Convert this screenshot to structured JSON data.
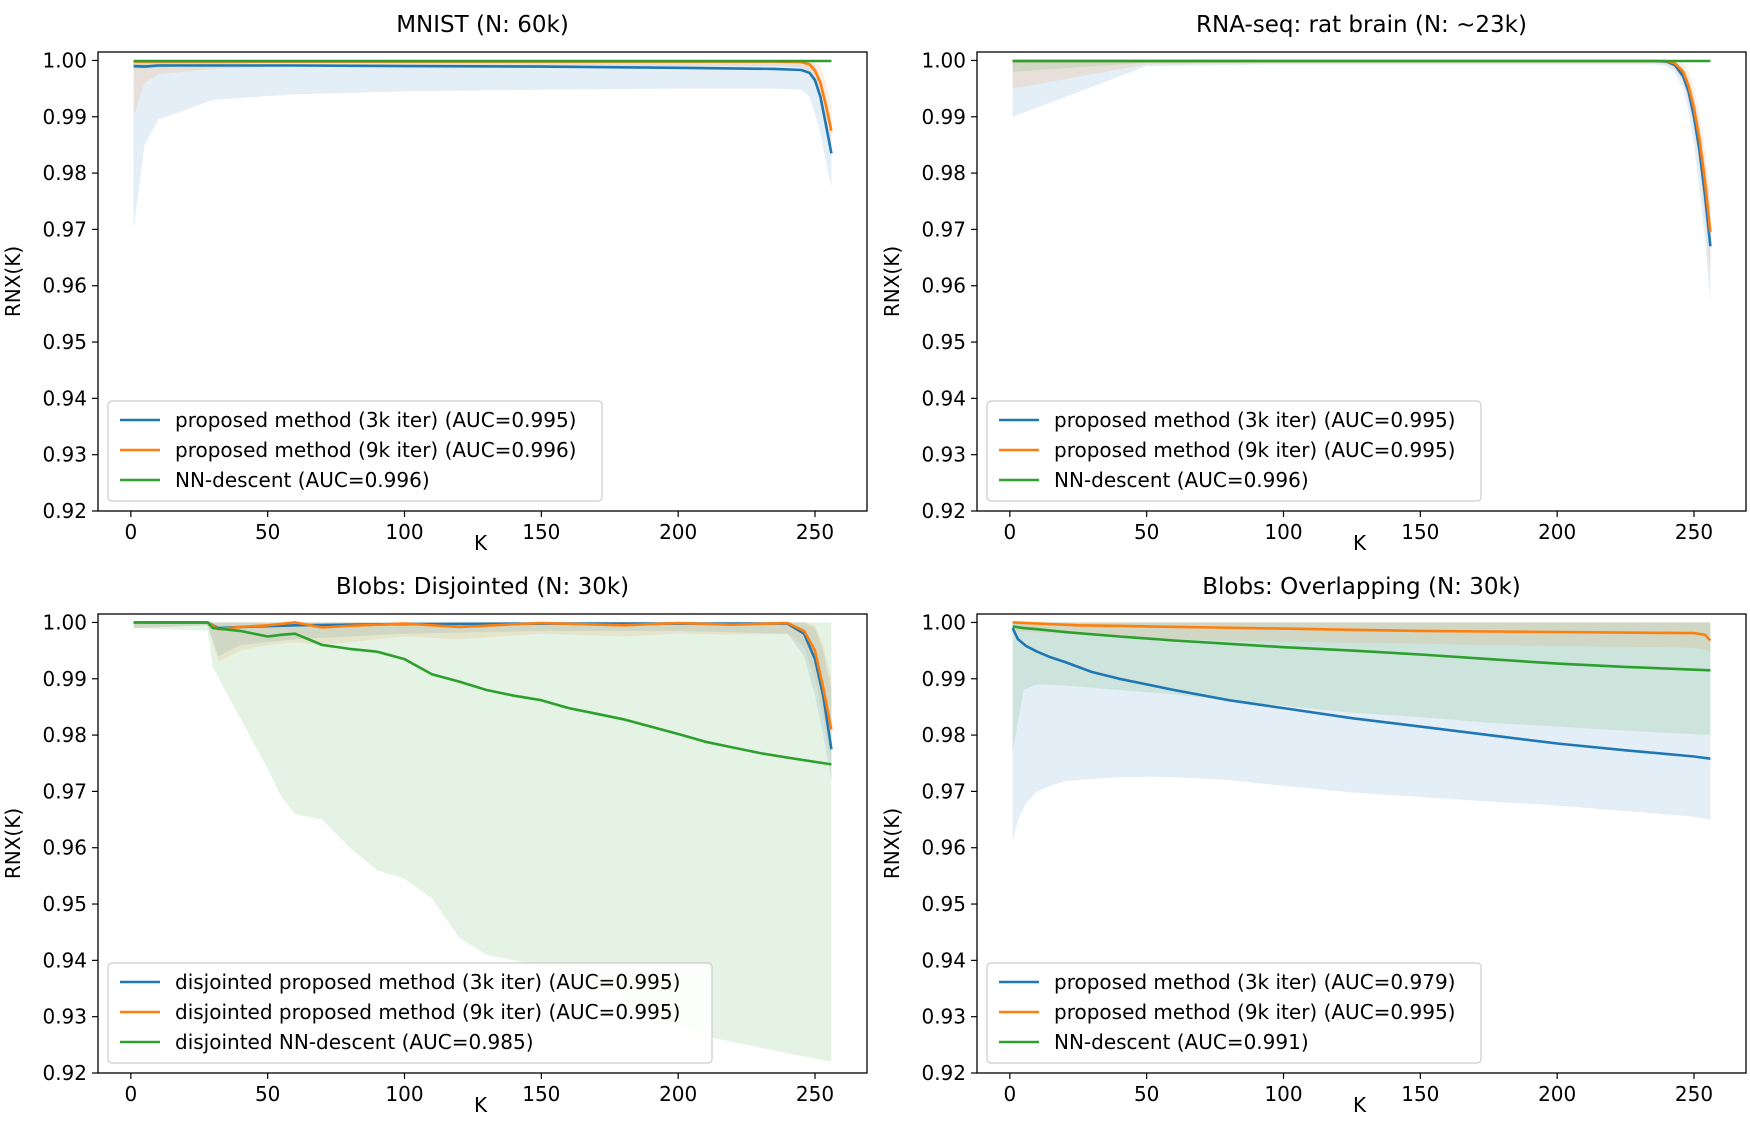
{
  "figure": {
    "rows": 2,
    "cols": 2
  },
  "colors": {
    "blue": "#1f77b4",
    "orange": "#ff7f0e",
    "green": "#2ca02c",
    "axis": "#000000"
  },
  "chart_data": [
    {
      "type": "line",
      "title": "MNIST (N: 60k)",
      "xlabel": "K",
      "ylabel": "RNX(K)",
      "xlim": [
        -12,
        269
      ],
      "ylim": [
        0.92,
        1.0015
      ],
      "xticks": [
        0,
        50,
        100,
        150,
        200,
        250
      ],
      "yticks": [
        1.0,
        0.99,
        0.98,
        0.97,
        0.96,
        0.95,
        0.94,
        0.93,
        0.92
      ],
      "legend_position": "lower-left",
      "series": [
        {
          "name": "proposed method (3k iter) (AUC=0.995)",
          "color": "#1f77b4",
          "x": [
            1,
            5,
            10,
            30,
            60,
            100,
            150,
            200,
            235,
            245,
            248,
            250,
            252,
            254,
            256
          ],
          "y": [
            0.999,
            0.9989,
            0.9991,
            0.9991,
            0.9991,
            0.999,
            0.9989,
            0.9987,
            0.9985,
            0.9983,
            0.9978,
            0.9965,
            0.9935,
            0.9885,
            0.9835
          ],
          "band_hi": [
            0.9999,
            0.9999,
            0.9999,
            0.9999,
            0.9999,
            0.9999,
            0.9999,
            0.9999,
            0.9999,
            0.9999,
            0.9998,
            0.9992,
            0.997,
            0.993,
            0.989
          ],
          "band_lo": [
            0.97,
            0.985,
            0.9895,
            0.993,
            0.994,
            0.9945,
            0.9948,
            0.995,
            0.995,
            0.9948,
            0.9935,
            0.9905,
            0.987,
            0.982,
            0.9775
          ]
        },
        {
          "name": "proposed method (9k iter) (AUC=0.996)",
          "color": "#ff7f0e",
          "x": [
            1,
            5,
            10,
            30,
            60,
            100,
            150,
            200,
            235,
            245,
            248,
            250,
            252,
            254,
            256
          ],
          "y": [
            0.9998,
            0.9998,
            0.9998,
            0.9998,
            0.9998,
            0.9998,
            0.9998,
            0.9998,
            0.9998,
            0.9997,
            0.9993,
            0.9982,
            0.996,
            0.992,
            0.9875
          ],
          "band_hi": [
            1.0,
            1.0,
            1.0,
            1.0,
            1.0,
            1.0,
            1.0,
            1.0,
            1.0,
            1.0,
            1.0,
            0.9998,
            0.999,
            0.996,
            0.992
          ],
          "band_lo": [
            0.99,
            0.996,
            0.9975,
            0.9985,
            0.999,
            0.999,
            0.999,
            0.999,
            0.999,
            0.9988,
            0.998,
            0.996,
            0.993,
            0.988,
            0.983
          ]
        },
        {
          "name": "NN-descent (AUC=0.996)",
          "color": "#2ca02c",
          "x": [
            1,
            50,
            100,
            150,
            200,
            256
          ],
          "y": [
            0.9999,
            0.9999,
            0.9999,
            0.9999,
            0.9999,
            0.9999
          ],
          "band_hi": [
            1.0,
            1.0,
            1.0,
            1.0,
            1.0,
            1.0
          ],
          "band_lo": [
            0.9985,
            0.9997,
            0.9997,
            0.9997,
            0.9997,
            0.9997
          ]
        }
      ]
    },
    {
      "type": "line",
      "title": "RNA-seq: rat brain (N: ~23k)",
      "xlabel": "K",
      "ylabel": "RNX(K)",
      "xlim": [
        -12,
        269
      ],
      "ylim": [
        0.92,
        1.0015
      ],
      "xticks": [
        0,
        50,
        100,
        150,
        200,
        250
      ],
      "yticks": [
        1.0,
        0.99,
        0.98,
        0.97,
        0.96,
        0.95,
        0.94,
        0.93,
        0.92
      ],
      "legend_position": "lower-left",
      "series": [
        {
          "name": "proposed method (3k iter) (AUC=0.995)",
          "color": "#1f77b4",
          "x": [
            1,
            50,
            100,
            150,
            200,
            235,
            240,
            243,
            246,
            248,
            250,
            252,
            254,
            256
          ],
          "y": [
            0.9999,
            0.9999,
            0.9999,
            0.9999,
            0.9999,
            0.9999,
            0.9998,
            0.9992,
            0.9972,
            0.9945,
            0.99,
            0.984,
            0.976,
            0.967
          ],
          "band_hi": [
            1.0,
            1.0,
            1.0,
            1.0,
            1.0,
            1.0,
            1.0,
            0.9998,
            0.9988,
            0.997,
            0.9935,
            0.9885,
            0.9815,
            0.974
          ],
          "band_lo": [
            0.99,
            0.999,
            0.9993,
            0.9993,
            0.9993,
            0.9993,
            0.999,
            0.9978,
            0.995,
            0.991,
            0.985,
            0.977,
            0.968,
            0.957
          ]
        },
        {
          "name": "proposed method (9k iter) (AUC=0.995)",
          "color": "#ff7f0e",
          "x": [
            1,
            50,
            100,
            150,
            200,
            235,
            240,
            243,
            246,
            248,
            250,
            252,
            254,
            256
          ],
          "y": [
            0.9999,
            0.9999,
            0.9999,
            0.9999,
            0.9999,
            0.9999,
            0.9999,
            0.9995,
            0.998,
            0.9955,
            0.9915,
            0.986,
            0.9785,
            0.9695
          ],
          "band_hi": [
            1.0,
            1.0,
            1.0,
            1.0,
            1.0,
            1.0,
            1.0,
            1.0,
            0.9995,
            0.998,
            0.995,
            0.9905,
            0.984,
            0.977
          ],
          "band_lo": [
            0.995,
            0.9993,
            0.9995,
            0.9995,
            0.9995,
            0.9995,
            0.9993,
            0.9985,
            0.9962,
            0.993,
            0.988,
            0.981,
            0.972,
            0.961
          ]
        },
        {
          "name": "NN-descent (AUC=0.996)",
          "color": "#2ca02c",
          "x": [
            1,
            50,
            100,
            150,
            200,
            256
          ],
          "y": [
            0.9999,
            0.9999,
            0.9999,
            0.9999,
            0.9999,
            0.9999
          ],
          "band_hi": [
            1.0,
            1.0,
            1.0,
            1.0,
            1.0,
            1.0
          ],
          "band_lo": [
            0.998,
            0.9996,
            0.9997,
            0.9997,
            0.9997,
            0.9997
          ]
        }
      ]
    },
    {
      "type": "line",
      "title": "Blobs: Disjointed (N: 30k)",
      "xlabel": "K",
      "ylabel": "RNX(K)",
      "xlim": [
        -12,
        269
      ],
      "ylim": [
        0.92,
        1.0015
      ],
      "xticks": [
        0,
        50,
        100,
        150,
        200,
        250
      ],
      "yticks": [
        1.0,
        0.99,
        0.98,
        0.97,
        0.96,
        0.95,
        0.94,
        0.93,
        0.92
      ],
      "legend_position": "lower-left",
      "series": [
        {
          "name": "disjointed proposed method (3k iter) (AUC=0.995)",
          "color": "#1f77b4",
          "x": [
            1,
            28,
            32,
            40,
            60,
            100,
            150,
            200,
            240,
            246,
            250,
            253,
            256
          ],
          "y": [
            1.0,
            1.0,
            0.999,
            0.9992,
            0.9995,
            0.9997,
            0.9998,
            0.9998,
            0.9998,
            0.998,
            0.9935,
            0.987,
            0.9775
          ],
          "band_hi": [
            1.0,
            1.0,
            1.0,
            1.0,
            1.0,
            1.0,
            1.0,
            1.0,
            1.0,
            1.0,
            0.999,
            0.995,
            0.988
          ],
          "band_lo": [
            0.999,
            0.9995,
            0.994,
            0.996,
            0.997,
            0.998,
            0.9985,
            0.9985,
            0.998,
            0.994,
            0.987,
            0.98,
            0.972
          ]
        },
        {
          "name": "disjointed proposed method (9k iter) (AUC=0.995)",
          "color": "#ff7f0e",
          "x": [
            1,
            28,
            32,
            40,
            50,
            60,
            70,
            80,
            100,
            120,
            150,
            180,
            200,
            220,
            240,
            246,
            250,
            253,
            256
          ],
          "y": [
            1.0,
            1.0,
            0.9988,
            0.9992,
            0.9995,
            1.0,
            0.9991,
            0.9994,
            0.9998,
            0.9992,
            0.9999,
            0.9995,
            0.9999,
            0.9996,
            0.9999,
            0.9985,
            0.995,
            0.9885,
            0.981
          ],
          "band_hi": [
            1.0,
            1.0,
            1.0,
            1.0,
            1.0,
            1.0,
            1.0,
            1.0,
            1.0,
            1.0,
            1.0,
            1.0,
            1.0,
            1.0,
            1.0,
            1.0,
            0.9995,
            0.996,
            0.99
          ],
          "band_lo": [
            0.999,
            0.9995,
            0.993,
            0.995,
            0.996,
            0.9965,
            0.996,
            0.9965,
            0.9975,
            0.997,
            0.998,
            0.9975,
            0.998,
            0.9978,
            0.998,
            0.9955,
            0.99,
            0.983,
            0.975
          ]
        },
        {
          "name": "disjointed NN-descent (AUC=0.985)",
          "color": "#2ca02c",
          "x": [
            1,
            28,
            30,
            40,
            50,
            55,
            60,
            70,
            80,
            90,
            100,
            110,
            120,
            130,
            140,
            150,
            160,
            170,
            180,
            190,
            200,
            210,
            220,
            230,
            240,
            256
          ],
          "y": [
            1.0,
            1.0,
            0.999,
            0.9985,
            0.9975,
            0.9978,
            0.998,
            0.996,
            0.9953,
            0.9948,
            0.9935,
            0.9908,
            0.9895,
            0.988,
            0.987,
            0.9862,
            0.9848,
            0.9838,
            0.9828,
            0.9815,
            0.9802,
            0.9788,
            0.9778,
            0.9768,
            0.976,
            0.9748
          ],
          "band_hi": [
            1.0,
            1.0,
            1.0,
            1.0,
            1.0,
            1.0,
            1.0,
            1.0,
            1.0,
            1.0,
            1.0,
            1.0,
            1.0,
            1.0,
            1.0,
            1.0,
            1.0,
            1.0,
            1.0,
            1.0,
            1.0,
            1.0,
            1.0,
            1.0,
            1.0,
            1.0
          ],
          "band_lo": [
            0.999,
            0.9985,
            0.992,
            0.983,
            0.974,
            0.969,
            0.966,
            0.965,
            0.96,
            0.956,
            0.9545,
            0.951,
            0.944,
            0.941,
            0.94,
            0.939,
            0.9375,
            0.936,
            0.933,
            0.93,
            0.9285,
            0.9265,
            0.9255,
            0.9245,
            0.9235,
            0.922
          ]
        }
      ]
    },
    {
      "type": "line",
      "title": "Blobs: Overlapping (N: 30k)",
      "xlabel": "K",
      "ylabel": "RNX(K)",
      "xlim": [
        -12,
        269
      ],
      "ylim": [
        0.92,
        1.0015
      ],
      "xticks": [
        0,
        50,
        100,
        150,
        200,
        250
      ],
      "yticks": [
        1.0,
        0.99,
        0.98,
        0.97,
        0.96,
        0.95,
        0.94,
        0.93,
        0.92
      ],
      "legend_position": "lower-left",
      "series": [
        {
          "name": "proposed method (3k iter) (AUC=0.979)",
          "color": "#1f77b4",
          "x": [
            1,
            3,
            6,
            10,
            15,
            20,
            30,
            40,
            50,
            60,
            80,
            100,
            125,
            150,
            175,
            200,
            225,
            250,
            256
          ],
          "y": [
            0.999,
            0.997,
            0.9958,
            0.9948,
            0.9938,
            0.993,
            0.9912,
            0.99,
            0.989,
            0.988,
            0.9862,
            0.9848,
            0.983,
            0.9815,
            0.98,
            0.9785,
            0.9773,
            0.9762,
            0.9758
          ],
          "band_hi": [
            1.0,
            1.0,
            1.0,
            1.0,
            1.0,
            1.0,
            1.0,
            1.0,
            1.0,
            1.0,
            1.0,
            1.0,
            1.0,
            1.0,
            1.0,
            1.0,
            1.0,
            1.0,
            1.0
          ],
          "band_lo": [
            0.961,
            0.965,
            0.968,
            0.97,
            0.971,
            0.9718,
            0.9722,
            0.9725,
            0.9726,
            0.9725,
            0.972,
            0.971,
            0.9698,
            0.969,
            0.9682,
            0.9675,
            0.9665,
            0.9655,
            0.965
          ]
        },
        {
          "name": "proposed method (9k iter) (AUC=0.995)",
          "color": "#ff7f0e",
          "x": [
            1,
            25,
            50,
            75,
            100,
            125,
            150,
            175,
            200,
            225,
            250,
            254,
            256
          ],
          "y": [
            1.0,
            0.9995,
            0.9993,
            0.9991,
            0.9989,
            0.9987,
            0.9985,
            0.9984,
            0.9983,
            0.9982,
            0.9981,
            0.9978,
            0.9968
          ],
          "band_hi": [
            1.0,
            1.0,
            1.0,
            1.0,
            1.0,
            1.0,
            1.0,
            1.0,
            1.0,
            1.0,
            1.0,
            1.0,
            1.0
          ],
          "band_lo": [
            0.9985,
            0.9978,
            0.9972,
            0.9968,
            0.9966,
            0.9964,
            0.9962,
            0.996,
            0.9958,
            0.9957,
            0.9955,
            0.9952,
            0.9945
          ]
        },
        {
          "name": "NN-descent (AUC=0.991)",
          "color": "#2ca02c",
          "x": [
            1,
            5,
            10,
            20,
            40,
            60,
            80,
            100,
            125,
            150,
            175,
            200,
            225,
            256
          ],
          "y": [
            0.9993,
            0.999,
            0.9988,
            0.9983,
            0.9975,
            0.9968,
            0.9962,
            0.9956,
            0.995,
            0.9943,
            0.9935,
            0.9927,
            0.9921,
            0.9915
          ],
          "band_hi": [
            1.0,
            1.0,
            1.0,
            1.0,
            1.0,
            1.0,
            1.0,
            1.0,
            1.0,
            1.0,
            1.0,
            1.0,
            1.0,
            1.0
          ],
          "band_lo": [
            0.977,
            0.988,
            0.989,
            0.9888,
            0.988,
            0.9872,
            0.9862,
            0.9852,
            0.984,
            0.9832,
            0.9822,
            0.9815,
            0.9808,
            0.98
          ]
        }
      ]
    }
  ]
}
